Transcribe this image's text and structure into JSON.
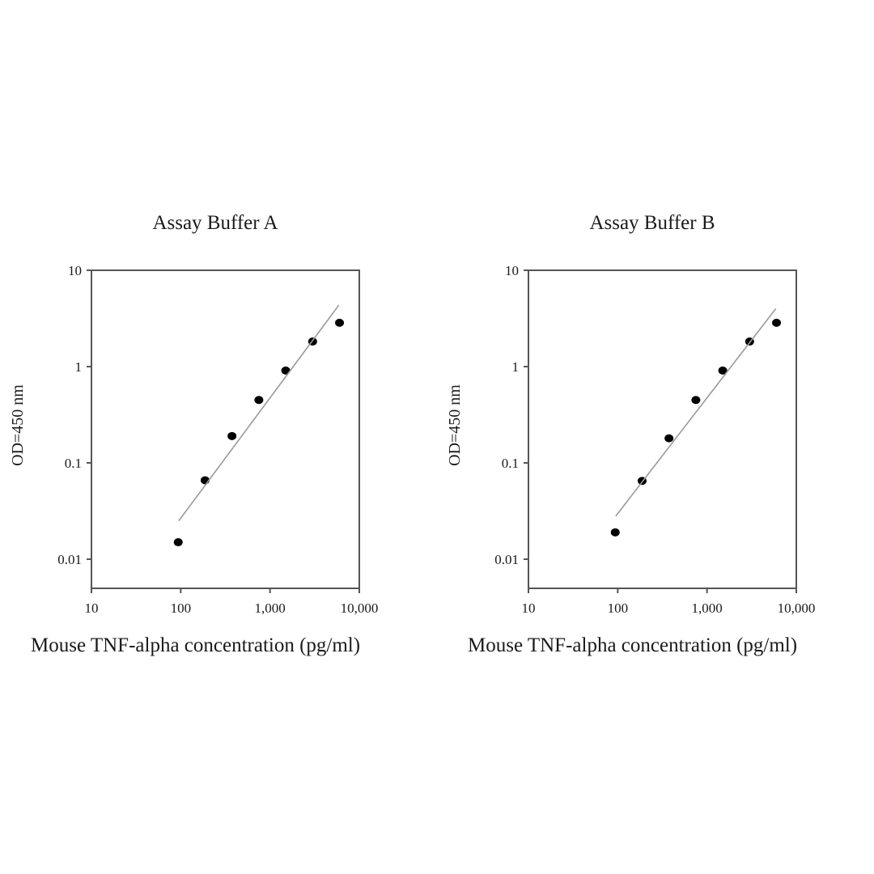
{
  "figure": {
    "background": "#ffffff",
    "axis_color": "#555555",
    "fit_line_color": "#9a9a9a",
    "point_color": "#000000"
  },
  "chart_data": [
    {
      "type": "scatter",
      "title": "Assay Buffer A",
      "xlabel": "Mouse TNF-alpha concentration (pg/ml)",
      "ylabel": "OD=450 nm",
      "xscale": "log",
      "yscale": "log",
      "xlim": [
        10,
        10000
      ],
      "ylim": [
        0.005,
        10
      ],
      "x_ticks": [
        10,
        100,
        1000,
        10000
      ],
      "x_tick_labels": [
        "10",
        "100",
        "1,000",
        "10,000"
      ],
      "y_ticks": [
        10,
        1,
        0.1,
        0.01
      ],
      "y_tick_labels": [
        "10",
        "1",
        "0.1",
        "0.01"
      ],
      "grid": false,
      "legend": null,
      "series": [
        {
          "name": "Standard points",
          "x": [
            93.75,
            187.5,
            375,
            750,
            1500,
            3000,
            6000
          ],
          "y": [
            0.015,
            0.066,
            0.19,
            0.45,
            0.91,
            1.82,
            2.85
          ]
        },
        {
          "name": "Fit line",
          "style": "line",
          "x": [
            95,
            5900
          ],
          "y": [
            0.025,
            4.35
          ]
        }
      ]
    },
    {
      "type": "scatter",
      "title": "Assay Buffer B",
      "xlabel": "Mouse TNF-alpha concentration (pg/ml)",
      "ylabel": "OD=450 nm",
      "xscale": "log",
      "yscale": "log",
      "xlim": [
        10,
        10000
      ],
      "ylim": [
        0.005,
        10
      ],
      "x_ticks": [
        10,
        100,
        1000,
        10000
      ],
      "x_tick_labels": [
        "10",
        "100",
        "1,000",
        "10,000"
      ],
      "y_ticks": [
        10,
        1,
        0.1,
        0.01
      ],
      "y_tick_labels": [
        "10",
        "1",
        "0.1",
        "0.01"
      ],
      "grid": false,
      "legend": null,
      "series": [
        {
          "name": "Standard points",
          "x": [
            93.75,
            187.5,
            375,
            750,
            1500,
            3000,
            6000
          ],
          "y": [
            0.019,
            0.065,
            0.18,
            0.45,
            0.91,
            1.82,
            2.85
          ]
        },
        {
          "name": "Fit line",
          "style": "line",
          "x": [
            95,
            5900
          ],
          "y": [
            0.028,
            4.0
          ]
        }
      ]
    }
  ]
}
